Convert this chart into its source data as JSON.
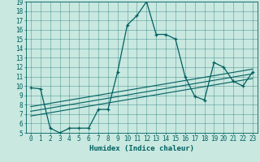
{
  "xlabel": "Humidex (Indice chaleur)",
  "bg_color": "#c8e8e0",
  "line_color": "#006060",
  "xlim": [
    -0.5,
    23.5
  ],
  "ylim": [
    5,
    19
  ],
  "yticks": [
    5,
    6,
    7,
    8,
    9,
    10,
    11,
    12,
    13,
    14,
    15,
    16,
    17,
    18,
    19
  ],
  "xticks": [
    0,
    1,
    2,
    3,
    4,
    5,
    6,
    7,
    8,
    9,
    10,
    11,
    12,
    13,
    14,
    15,
    16,
    17,
    18,
    19,
    20,
    21,
    22,
    23
  ],
  "zigzag_x": [
    0,
    1,
    2,
    3,
    4,
    5,
    6,
    7,
    8,
    9,
    10,
    11,
    12,
    13,
    14,
    15,
    16,
    17,
    18,
    19,
    20,
    21,
    22,
    23
  ],
  "zigzag_y": [
    9.8,
    9.7,
    5.5,
    5.0,
    5.5,
    5.5,
    5.5,
    7.5,
    7.5,
    11.5,
    16.5,
    17.5,
    19.0,
    15.5,
    15.5,
    15.0,
    11.0,
    8.9,
    8.5,
    12.5,
    12.0,
    10.5,
    10.0,
    11.5
  ],
  "straight_lines": [
    {
      "x": [
        0,
        23
      ],
      "y": [
        6.8,
        10.8
      ]
    },
    {
      "x": [
        0,
        23
      ],
      "y": [
        7.3,
        11.3
      ]
    },
    {
      "x": [
        0,
        23
      ],
      "y": [
        7.8,
        11.8
      ]
    }
  ]
}
